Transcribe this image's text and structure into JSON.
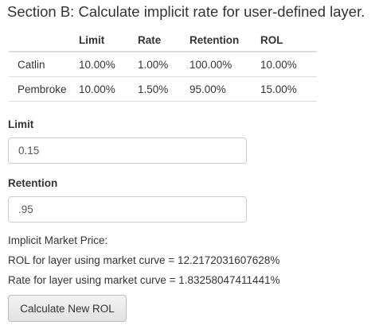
{
  "section": {
    "title": "Section B: Calculate implicit rate for user-defined layer."
  },
  "table": {
    "headers": [
      "",
      "Limit",
      "Rate",
      "Retention",
      "ROL"
    ],
    "rows": [
      {
        "name": "Catlin",
        "limit": "10.00%",
        "rate": "1.00%",
        "retention": "100.00%",
        "rol": "10.00%"
      },
      {
        "name": "Pembroke",
        "limit": "10.00%",
        "rate": "1.50%",
        "retention": "95.00%",
        "rol": "15.00%"
      }
    ]
  },
  "inputs": {
    "limit": {
      "label": "Limit",
      "value": "0.15"
    },
    "retention": {
      "label": "Retention",
      "value": ".95"
    }
  },
  "results": {
    "heading": "Implicit Market Price:",
    "rol_line": "ROL for layer using market curve = 12.2172031607628%",
    "rate_line": "Rate for layer using market curve = 1.83258047411441%"
  },
  "actions": {
    "calculate_label": "Calculate New ROL"
  }
}
